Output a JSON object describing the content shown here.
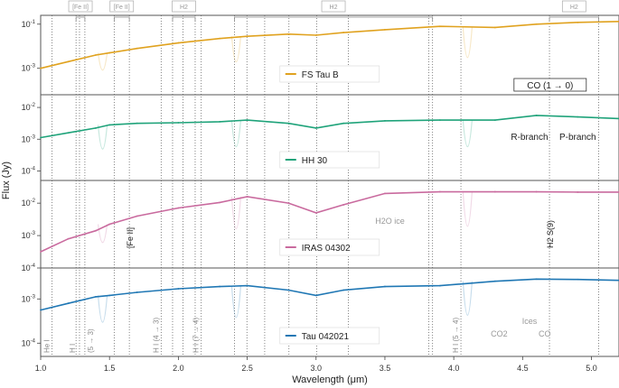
{
  "chart_data": {
    "type": "line",
    "title": "",
    "xlabel": "Wavelength (μm)",
    "ylabel": "Flux (Jy)",
    "xlim": [
      1.0,
      5.2
    ],
    "x_ticks": [
      1.0,
      1.5,
      2.0,
      2.5,
      3.0,
      3.5,
      4.0,
      4.5,
      5.0
    ],
    "x_tick_labels": [
      "1.0",
      "1.5",
      "2.0",
      "2.5",
      "3.0",
      "3.5",
      "4.0",
      "4.5",
      "5.0"
    ],
    "yscale": "log",
    "grid": false,
    "line_markers": [
      1.083,
      1.257,
      1.282,
      1.321,
      1.534,
      1.644,
      1.875,
      1.958,
      2.034,
      2.122,
      2.166,
      2.407,
      2.498,
      2.627,
      2.803,
      3.004,
      3.235,
      3.819,
      3.846,
      4.052,
      4.695,
      5.053
    ],
    "bracket_labels": [
      {
        "label": "[Fe II]",
        "x_range": [
          1.257,
          1.321
        ]
      },
      {
        "label": "[Fe II]",
        "x_range": [
          1.534,
          1.644
        ]
      },
      {
        "label": "H2",
        "x_range": [
          1.958,
          2.122
        ]
      },
      {
        "label": "H2",
        "x_range": [
          2.407,
          3.846
        ]
      },
      {
        "label": "H2",
        "x_range": [
          4.695,
          5.053
        ]
      }
    ],
    "panels": [
      {
        "name": "FS Tau B",
        "color": "#E0A21F",
        "ylim_exp": [
          -4.2,
          -0.6
        ],
        "y_ticks": [
          "10^-1",
          "10^-3"
        ],
        "y_tick_values": [
          -1,
          -3
        ],
        "series": {
          "x": [
            1.0,
            1.2,
            1.4,
            1.5,
            1.7,
            2.0,
            2.3,
            2.5,
            2.8,
            3.0,
            3.2,
            3.5,
            3.9,
            4.3,
            4.6,
            4.9,
            5.2
          ],
          "log_flux": [
            -3.0,
            -2.7,
            -2.4,
            -2.3,
            -2.1,
            -1.85,
            -1.65,
            -1.55,
            -1.45,
            -1.5,
            -1.38,
            -1.25,
            -1.1,
            -1.15,
            -1.0,
            -0.92,
            -0.88
          ]
        },
        "legend_label": "FS Tau B",
        "annotations": [
          {
            "text": "CO (1 → 0)",
            "x": 4.7
          }
        ]
      },
      {
        "name": "HH 30",
        "color": "#1FA37A",
        "ylim_exp": [
          -4.3,
          -1.6
        ],
        "y_ticks": [
          "10^-2",
          "10^-3",
          "10^-4"
        ],
        "y_tick_values": [
          -2,
          -3,
          -4
        ],
        "series": {
          "x": [
            1.0,
            1.2,
            1.4,
            1.5,
            1.7,
            2.0,
            2.3,
            2.5,
            2.8,
            3.0,
            3.2,
            3.5,
            3.9,
            4.3,
            4.6,
            4.9,
            5.2
          ],
          "log_flux": [
            -2.95,
            -2.8,
            -2.65,
            -2.55,
            -2.5,
            -2.48,
            -2.45,
            -2.4,
            -2.5,
            -2.65,
            -2.5,
            -2.42,
            -2.4,
            -2.4,
            -2.25,
            -2.3,
            -2.35
          ]
        },
        "legend_label": "HH 30",
        "annotations": [
          {
            "text": "R-branch",
            "x": 4.55
          },
          {
            "text": "P-branch",
            "x": 4.9
          }
        ]
      },
      {
        "name": "IRAS 04302",
        "color": "#C96A9E",
        "ylim_exp": [
          -4.0,
          -1.3
        ],
        "y_ticks": [
          "10^-2",
          "10^-3",
          "10^-4"
        ],
        "y_tick_values": [
          -2,
          -3,
          -4
        ],
        "series": {
          "x": [
            1.0,
            1.2,
            1.4,
            1.5,
            1.7,
            2.0,
            2.3,
            2.5,
            2.8,
            3.0,
            3.2,
            3.5,
            3.9,
            4.3,
            4.6,
            4.9,
            5.2
          ],
          "log_flux": [
            -3.5,
            -3.1,
            -2.85,
            -2.65,
            -2.4,
            -2.15,
            -1.98,
            -1.8,
            -2.0,
            -2.3,
            -2.05,
            -1.7,
            -1.65,
            -1.65,
            -1.65,
            -1.66,
            -1.66
          ]
        },
        "legend_label": "IRAS 04302",
        "annotations": [
          {
            "text": "[Fe II]",
            "x": 1.644
          },
          {
            "text": "H2O ice",
            "x": 3.2
          },
          {
            "text": "H2 S(9)",
            "x": 4.695
          }
        ]
      },
      {
        "name": "Tau 042021",
        "color": "#1F77B4",
        "ylim_exp": [
          -4.3,
          -2.3
        ],
        "y_ticks": [
          "10^-3",
          "10^-4"
        ],
        "y_tick_values": [
          -3,
          -4
        ],
        "series": {
          "x": [
            1.0,
            1.2,
            1.4,
            1.5,
            1.7,
            2.0,
            2.3,
            2.5,
            2.8,
            3.0,
            3.2,
            3.5,
            3.9,
            4.3,
            4.6,
            4.9,
            5.2
          ],
          "log_flux": [
            -3.25,
            -3.1,
            -2.95,
            -2.92,
            -2.85,
            -2.77,
            -2.72,
            -2.7,
            -2.8,
            -2.92,
            -2.8,
            -2.72,
            -2.7,
            -2.6,
            -2.55,
            -2.56,
            -2.58
          ]
        },
        "legend_label": "Tau 042021",
        "annotations": [
          {
            "text": "He I",
            "x": 1.083
          },
          {
            "text": "H I",
            "x": 1.282
          },
          {
            "text": "(5 → 3)",
            "x": 1.321
          },
          {
            "text": "H I (4 → 3)",
            "x": 1.875
          },
          {
            "text": "H I (7 → 4)",
            "x": 2.166
          },
          {
            "text": "H I (5 → 4)",
            "x": 4.052
          },
          {
            "text": "Ices",
            "x": 4.5
          },
          {
            "text": "CO2",
            "x": 4.27
          },
          {
            "text": "CO",
            "x": 4.67
          }
        ]
      }
    ]
  }
}
